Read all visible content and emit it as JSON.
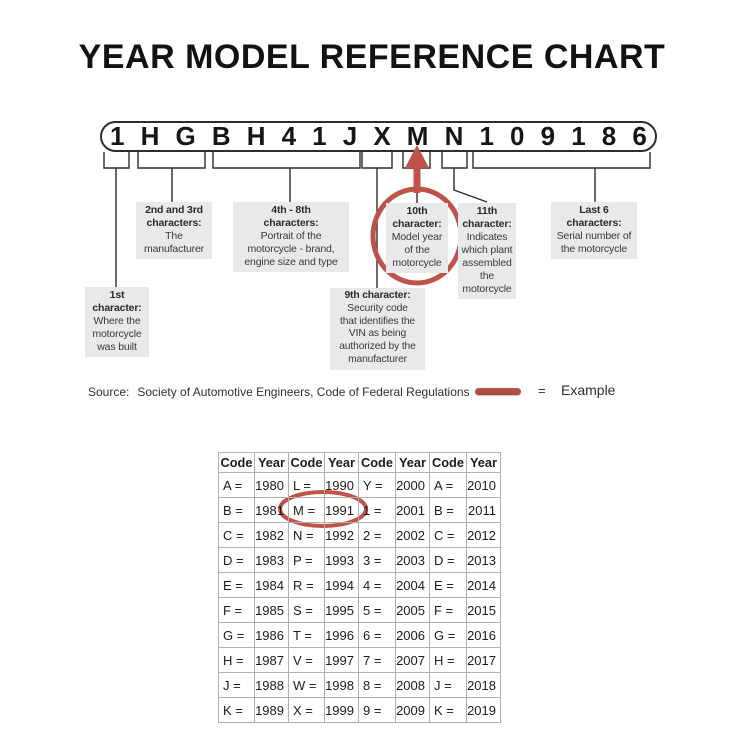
{
  "title": "YEAR MODEL REFERENCE CHART",
  "vin_characters": [
    "1",
    "H",
    "G",
    "B",
    "H",
    "4",
    "1",
    "J",
    "X",
    "M",
    "N",
    "1",
    "0",
    "9",
    "1",
    "8",
    "6"
  ],
  "callouts": {
    "char1": {
      "heading": "1st\ncharacter:",
      "body": "Where the\nmotorcycle\nwas built"
    },
    "chars2_3": {
      "heading": "2nd and 3rd\ncharacters:",
      "body": "The\nmanufacturer"
    },
    "chars4_8": {
      "heading": "4th - 8th\ncharacters:",
      "body": "Portrait of the\nmotorcycle - brand,\nengine size and type"
    },
    "char9": {
      "heading": "9th character:",
      "body": "Security code\nthat identifies the\nVIN as being\nauthorized by the\nmanufacturer"
    },
    "char10": {
      "heading": "10th\ncharacter:",
      "body": "Model year\nof the\nmotorcycle"
    },
    "char11": {
      "heading": "11th\ncharacter:",
      "body": "Indicates\nwhich plant\nassembled\nthe\nmotorcycle"
    },
    "last6": {
      "heading": "Last 6\ncharacters:",
      "body": "Serial number of\nthe motorcycle"
    }
  },
  "source": {
    "label": "Source:",
    "text": "Society of Automotive Engineers, Code of Federal Regulations"
  },
  "legend": {
    "equals": "=",
    "label": "Example"
  },
  "year_table": {
    "headers": [
      "Code",
      "Year",
      "Code",
      "Year",
      "Code",
      "Year",
      "Code",
      "Year"
    ],
    "rows": [
      [
        "A =",
        "1980",
        "L =",
        "1990",
        "Y =",
        "2000",
        "A =",
        "2010"
      ],
      [
        "B =",
        "1981",
        "M =",
        "1991",
        "1 =",
        "2001",
        "B =",
        "2011"
      ],
      [
        "C =",
        "1982",
        "N =",
        "1992",
        "2 =",
        "2002",
        "C =",
        "2012"
      ],
      [
        "D =",
        "1983",
        "P =",
        "1993",
        "3 =",
        "2003",
        "D =",
        "2013"
      ],
      [
        "E =",
        "1984",
        "R =",
        "1994",
        "4 =",
        "2004",
        "E =",
        "2014"
      ],
      [
        "F =",
        "1985",
        "S =",
        "1995",
        "5 =",
        "2005",
        "F =",
        "2015"
      ],
      [
        "G =",
        "1986",
        "T =",
        "1996",
        "6 =",
        "2006",
        "G =",
        "2016"
      ],
      [
        "H =",
        "1987",
        "V =",
        "1997",
        "7 =",
        "2007",
        "H =",
        "2017"
      ],
      [
        "J =",
        "1988",
        "W =",
        "1998",
        "8 =",
        "2008",
        "J =",
        "2018"
      ],
      [
        "K =",
        "1989",
        "X =",
        "1999",
        "9 =",
        "2009",
        "K =",
        "2019"
      ]
    ]
  },
  "annotations": {
    "circled_vin_position": "10th character",
    "circled_table_entry": "M = 1991"
  },
  "colors": {
    "accent_red": "#bf5349",
    "callout_bg": "#e9e9e9",
    "diagram_line": "#2e2e2e",
    "table_border": "#b0b0b0"
  }
}
